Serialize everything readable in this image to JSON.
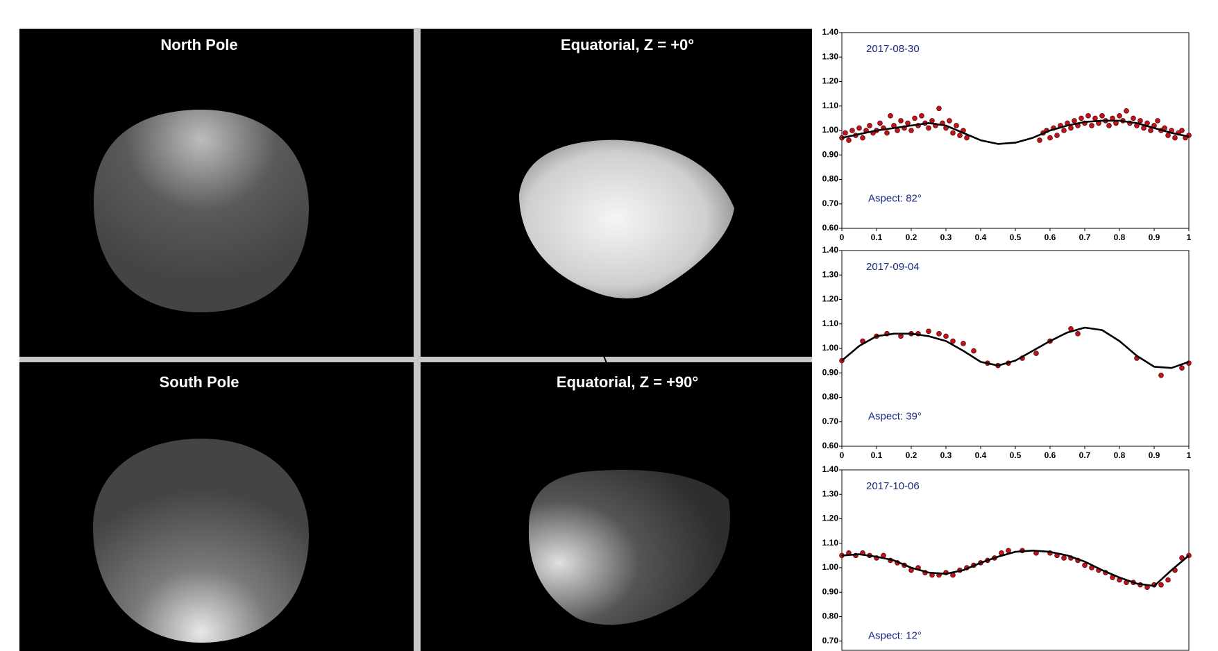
{
  "panels": [
    {
      "title": "North Pole"
    },
    {
      "title": "Equatorial, Z = +0°"
    },
    {
      "title": "South Pole"
    },
    {
      "title": "Equatorial, Z = +90°"
    }
  ],
  "chart_data": [
    {
      "type": "scatter",
      "title": "2017-08-30",
      "annotation": "Aspect: 82°",
      "points": {
        "color": "#c0141c",
        "x": [
          0.0,
          0.01,
          0.02,
          0.03,
          0.04,
          0.05,
          0.06,
          0.07,
          0.08,
          0.09,
          0.1,
          0.11,
          0.12,
          0.13,
          0.14,
          0.15,
          0.16,
          0.17,
          0.18,
          0.19,
          0.2,
          0.21,
          0.22,
          0.23,
          0.24,
          0.25,
          0.26,
          0.27,
          0.28,
          0.29,
          0.3,
          0.31,
          0.32,
          0.33,
          0.34,
          0.35,
          0.36,
          0.57,
          0.58,
          0.59,
          0.6,
          0.61,
          0.62,
          0.63,
          0.64,
          0.65,
          0.66,
          0.67,
          0.68,
          0.69,
          0.7,
          0.71,
          0.72,
          0.73,
          0.74,
          0.75,
          0.76,
          0.77,
          0.78,
          0.79,
          0.8,
          0.81,
          0.82,
          0.83,
          0.84,
          0.85,
          0.86,
          0.87,
          0.88,
          0.89,
          0.9,
          0.91,
          0.92,
          0.93,
          0.94,
          0.95,
          0.96,
          0.97,
          0.98,
          0.99,
          1.0
        ],
        "y": [
          0.97,
          0.99,
          0.96,
          1.0,
          0.98,
          1.01,
          0.97,
          1.0,
          1.02,
          0.99,
          1.0,
          1.03,
          1.01,
          0.99,
          1.06,
          1.02,
          1.0,
          1.04,
          1.01,
          1.03,
          1.0,
          1.05,
          1.02,
          1.06,
          1.03,
          1.01,
          1.04,
          1.02,
          1.09,
          1.03,
          1.01,
          1.04,
          0.99,
          1.02,
          0.98,
          1.0,
          0.97,
          0.96,
          0.99,
          1.0,
          0.97,
          1.01,
          0.98,
          1.02,
          1.0,
          1.03,
          1.01,
          1.04,
          1.02,
          1.05,
          1.03,
          1.06,
          1.02,
          1.05,
          1.03,
          1.06,
          1.04,
          1.02,
          1.05,
          1.03,
          1.06,
          1.04,
          1.08,
          1.03,
          1.05,
          1.02,
          1.04,
          1.01,
          1.03,
          1.0,
          1.02,
          1.04,
          1.0,
          1.01,
          0.98,
          1.0,
          0.97,
          0.99,
          1.0,
          0.97,
          0.98
        ]
      },
      "curve": {
        "color": "#000000",
        "x": [
          0,
          0.05,
          0.1,
          0.15,
          0.2,
          0.25,
          0.3,
          0.35,
          0.4,
          0.45,
          0.5,
          0.55,
          0.6,
          0.65,
          0.7,
          0.75,
          0.8,
          0.85,
          0.9,
          0.95,
          1
        ],
        "y": [
          0.97,
          0.985,
          1.0,
          1.01,
          1.02,
          1.03,
          1.02,
          0.99,
          0.96,
          0.945,
          0.95,
          0.97,
          1.0,
          1.02,
          1.035,
          1.04,
          1.04,
          1.03,
          1.01,
          0.99,
          0.975
        ]
      },
      "xlim": [
        0,
        1
      ],
      "ylim": [
        0.6,
        1.4
      ],
      "xticks": [
        0,
        0.1,
        0.2,
        0.3,
        0.4,
        0.5,
        0.6,
        0.7,
        0.8,
        0.9,
        1
      ],
      "yticks": [
        {
          "value": 1.4,
          "label": "1.40"
        },
        {
          "value": 1.3,
          "label": "1.30"
        },
        {
          "value": 1.2,
          "label": "1.20"
        },
        {
          "value": 1.1,
          "label": "1.10"
        },
        {
          "value": 1.0,
          "label": "1.00"
        },
        {
          "value": 0.9,
          "label": "0.90"
        },
        {
          "value": 0.8,
          "label": "0.80"
        },
        {
          "value": 0.7,
          "label": "0.70"
        },
        {
          "value": 0.6,
          "label": "0.60"
        }
      ]
    },
    {
      "type": "scatter",
      "title": "2017-09-04",
      "annotation": "Aspect: 39°",
      "points": {
        "color": "#c0141c",
        "x": [
          0.0,
          0.06,
          0.1,
          0.13,
          0.17,
          0.2,
          0.22,
          0.25,
          0.28,
          0.3,
          0.32,
          0.35,
          0.38,
          0.42,
          0.45,
          0.48,
          0.52,
          0.56,
          0.6,
          0.66,
          0.68,
          0.85,
          0.92,
          0.98,
          1.0
        ],
        "y": [
          0.95,
          1.03,
          1.05,
          1.06,
          1.05,
          1.06,
          1.06,
          1.07,
          1.06,
          1.05,
          1.03,
          1.02,
          0.99,
          0.94,
          0.93,
          0.94,
          0.96,
          0.98,
          1.03,
          1.08,
          1.06,
          0.96,
          0.89,
          0.92,
          0.94
        ]
      },
      "curve": {
        "color": "#000000",
        "x": [
          0,
          0.05,
          0.1,
          0.15,
          0.2,
          0.25,
          0.3,
          0.35,
          0.4,
          0.45,
          0.5,
          0.55,
          0.6,
          0.65,
          0.7,
          0.75,
          0.8,
          0.85,
          0.9,
          0.95,
          1
        ],
        "y": [
          0.95,
          1.01,
          1.05,
          1.06,
          1.06,
          1.05,
          1.03,
          0.99,
          0.945,
          0.93,
          0.95,
          0.99,
          1.03,
          1.065,
          1.085,
          1.075,
          1.03,
          0.97,
          0.925,
          0.92,
          0.945
        ]
      },
      "xlim": [
        0,
        1
      ],
      "ylim": [
        0.6,
        1.4
      ],
      "xticks": [
        0,
        0.1,
        0.2,
        0.3,
        0.4,
        0.5,
        0.6,
        0.7,
        0.8,
        0.9,
        1
      ],
      "yticks": [
        {
          "value": 1.4,
          "label": "1.40"
        },
        {
          "value": 1.3,
          "label": "1.30"
        },
        {
          "value": 1.2,
          "label": "1.20"
        },
        {
          "value": 1.1,
          "label": "1.10"
        },
        {
          "value": 1.0,
          "label": "1.00"
        },
        {
          "value": 0.9,
          "label": "0.90"
        },
        {
          "value": 0.8,
          "label": "0.80"
        },
        {
          "value": 0.7,
          "label": "0.70"
        },
        {
          "value": 0.6,
          "label": "0.60"
        }
      ]
    },
    {
      "type": "scatter",
      "title": "2017-10-06",
      "annotation": "Aspect: 12°",
      "points": {
        "color": "#c0141c",
        "x": [
          0,
          0.02,
          0.04,
          0.06,
          0.08,
          0.1,
          0.12,
          0.14,
          0.16,
          0.18,
          0.2,
          0.22,
          0.24,
          0.26,
          0.28,
          0.3,
          0.32,
          0.34,
          0.36,
          0.38,
          0.4,
          0.42,
          0.44,
          0.46,
          0.48,
          0.52,
          0.56,
          0.6,
          0.62,
          0.64,
          0.66,
          0.68,
          0.7,
          0.72,
          0.74,
          0.76,
          0.78,
          0.8,
          0.82,
          0.84,
          0.86,
          0.88,
          0.9,
          0.92,
          0.94,
          0.96,
          0.98,
          1.0
        ],
        "y": [
          1.05,
          1.06,
          1.05,
          1.06,
          1.05,
          1.04,
          1.05,
          1.03,
          1.02,
          1.01,
          0.99,
          1.0,
          0.98,
          0.97,
          0.97,
          0.98,
          0.97,
          0.99,
          1.0,
          1.01,
          1.02,
          1.03,
          1.04,
          1.06,
          1.07,
          1.07,
          1.06,
          1.06,
          1.05,
          1.04,
          1.04,
          1.03,
          1.01,
          1.0,
          0.99,
          0.98,
          0.96,
          0.95,
          0.94,
          0.94,
          0.93,
          0.92,
          0.93,
          0.93,
          0.95,
          0.99,
          1.04,
          1.05
        ]
      },
      "curve": {
        "color": "#000000",
        "x": [
          0,
          0.05,
          0.1,
          0.15,
          0.2,
          0.25,
          0.3,
          0.35,
          0.4,
          0.45,
          0.5,
          0.55,
          0.6,
          0.65,
          0.7,
          0.75,
          0.8,
          0.85,
          0.9,
          0.95,
          1
        ],
        "y": [
          1.05,
          1.055,
          1.045,
          1.03,
          1.0,
          0.98,
          0.975,
          0.99,
          1.02,
          1.045,
          1.065,
          1.07,
          1.065,
          1.05,
          1.025,
          0.99,
          0.96,
          0.935,
          0.925,
          0.99,
          1.05
        ]
      },
      "xlim": [
        0,
        1
      ],
      "ylim": [
        0.6,
        1.4
      ],
      "yticks": [
        {
          "value": 1.4,
          "label": "1.40"
        },
        {
          "value": 1.3,
          "label": "1.30"
        },
        {
          "value": 1.2,
          "label": "1.20"
        },
        {
          "value": 1.1,
          "label": "1.10"
        },
        {
          "value": 1.0,
          "label": "1.00"
        },
        {
          "value": 0.9,
          "label": "0.90"
        },
        {
          "value": 0.8,
          "label": "0.80"
        },
        {
          "value": 0.7,
          "label": "0.70"
        }
      ]
    }
  ]
}
